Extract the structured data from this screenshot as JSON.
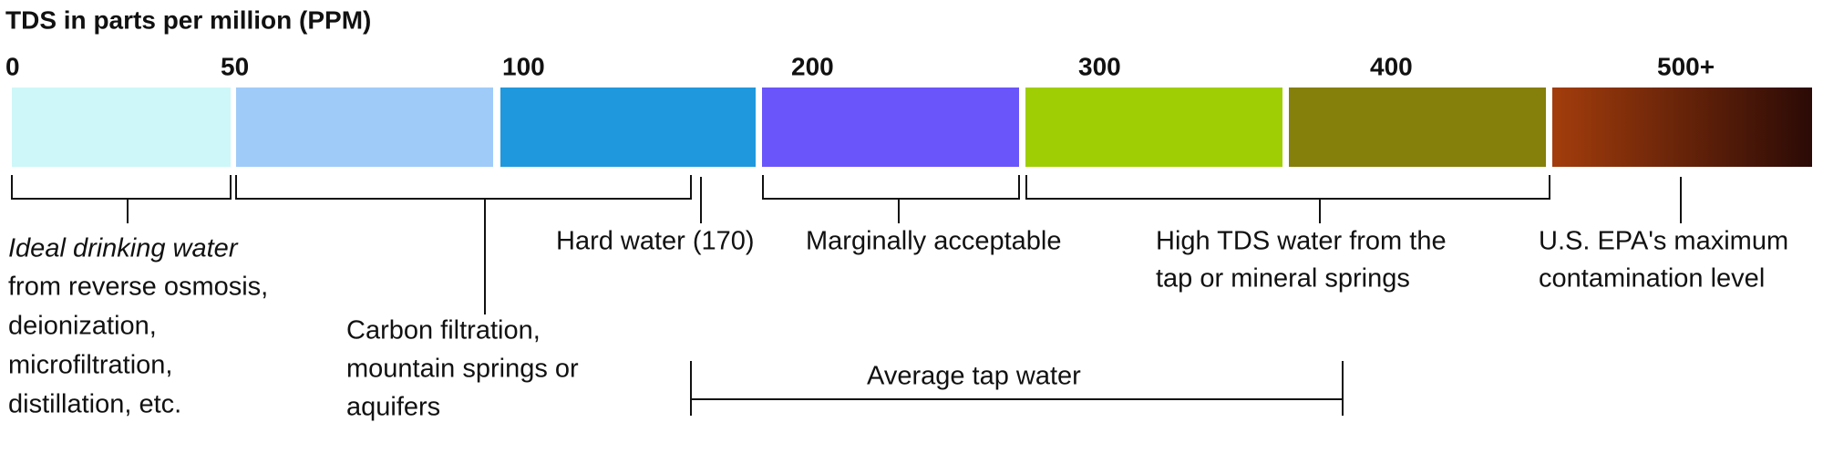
{
  "title": "TDS in parts per million (PPM)",
  "scale_labels": [
    "0",
    "50",
    "100",
    "200",
    "300",
    "400",
    "500+"
  ],
  "segments": [
    {
      "color": "#cdf7f8"
    },
    {
      "color": "#9fcbf9"
    },
    {
      "color": "#1f98dd"
    },
    {
      "color": "#6a55fb"
    },
    {
      "color": "#9fce05"
    },
    {
      "color": "#857f0b"
    },
    {
      "color": "#a33d0c",
      "color_end": "#2b0a06"
    }
  ],
  "annotations": {
    "ideal": {
      "emphasis": "Ideal drinking water",
      "lines": [
        "from reverse osmosis,",
        "deionization,",
        "microfiltration,",
        "distillation, etc."
      ]
    },
    "carbon": {
      "lines": [
        "Carbon filtration,",
        "mountain springs or",
        "aquifers"
      ]
    },
    "hard": "Hard water (170)",
    "marginal": "Marginally acceptable",
    "high": {
      "lines": [
        "High TDS water from the",
        "tap or mineral springs"
      ]
    },
    "epa": {
      "lines": [
        "U.S. EPA's maximum",
        "contamination level"
      ]
    },
    "average": "Average tap water"
  }
}
